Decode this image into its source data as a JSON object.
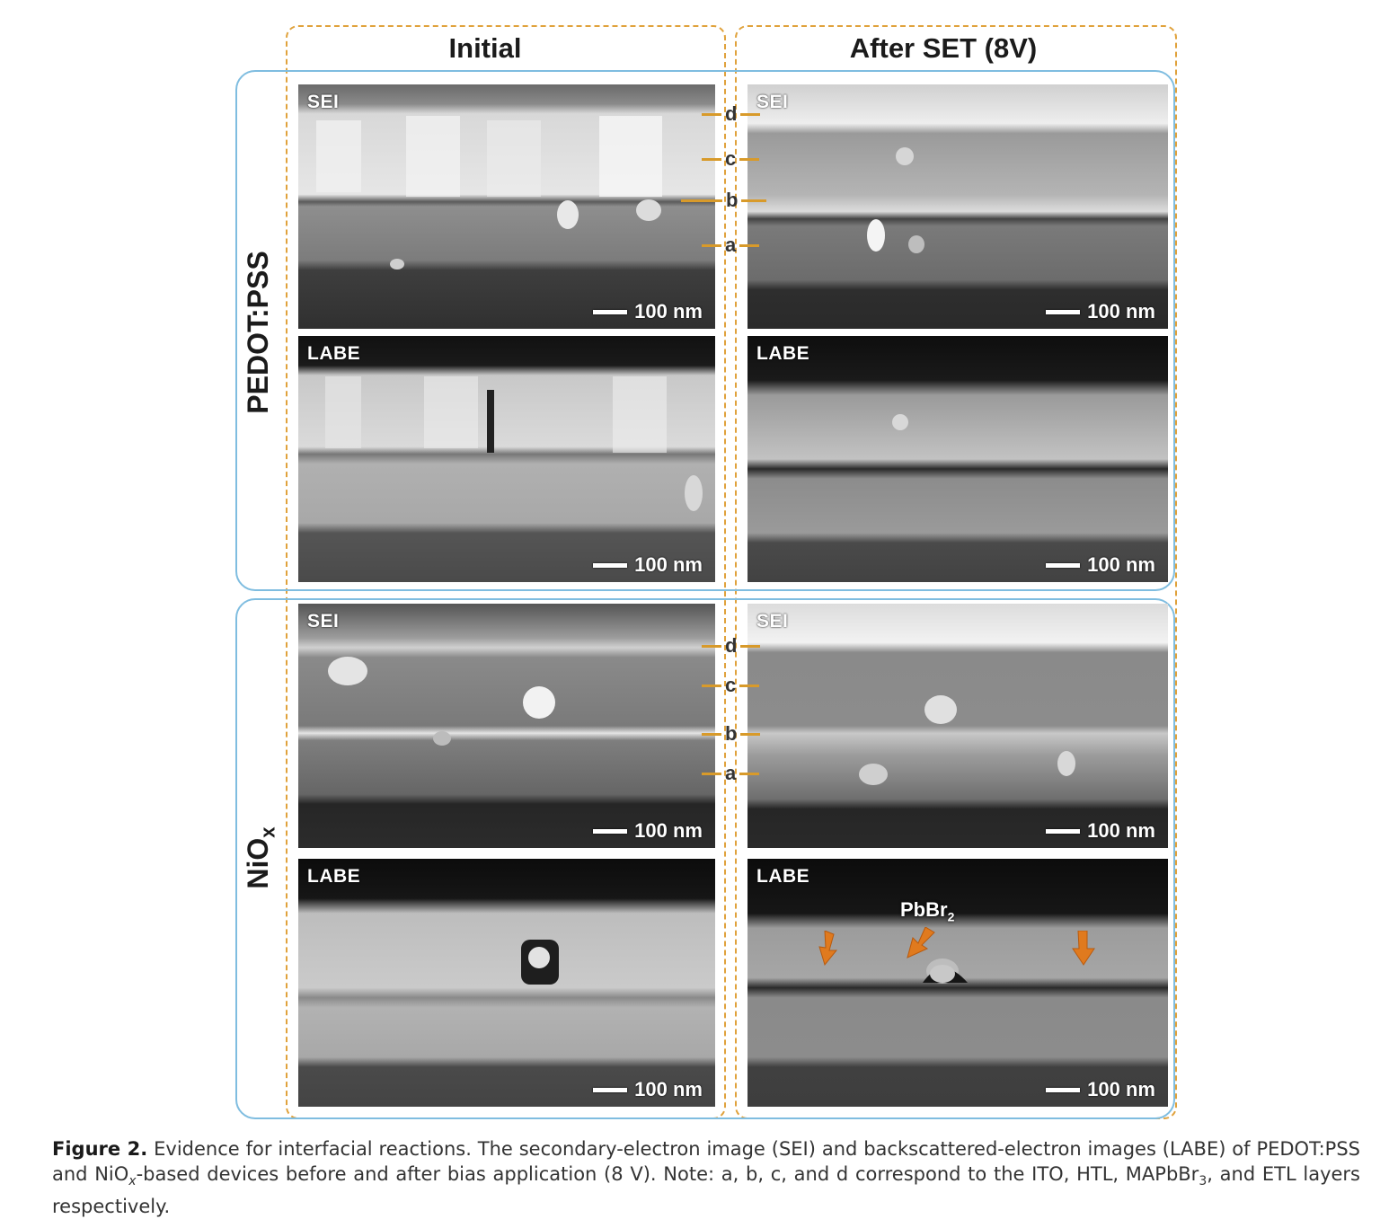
{
  "columns": {
    "initial": "Initial",
    "after_set": "After SET (8V)"
  },
  "rows": {
    "pedot": "PEDOT:PSS",
    "niox_main": "NiO",
    "niox_sub": "x"
  },
  "panel_tags": {
    "sei": "SEI",
    "labe": "LABE"
  },
  "scale_bar": "100 nm",
  "layer_letters": {
    "a": "a",
    "b": "b",
    "c": "c",
    "d": "d"
  },
  "annotation": {
    "main": "PbBr",
    "sub": "2"
  },
  "caption": {
    "label": "Figure 2.",
    "part1": " Evidence for interfacial reactions. The secondary-electron image (SEI) and backscattered-electron images (LABE) of PEDOT:PSS and NiO",
    "sub_x": "x",
    "part2": "-based devices before and after bias application (8 V). Note: a, b, c, and d correspond to the ITO, HTL, MAPbBr",
    "sub_3": "3",
    "part3": ", and ETL layers respectively."
  },
  "colors": {
    "column_border": "#e0a23c",
    "row_border": "#7fbde0",
    "marker": "#d89a2a",
    "arrow": "#e07a1e"
  }
}
